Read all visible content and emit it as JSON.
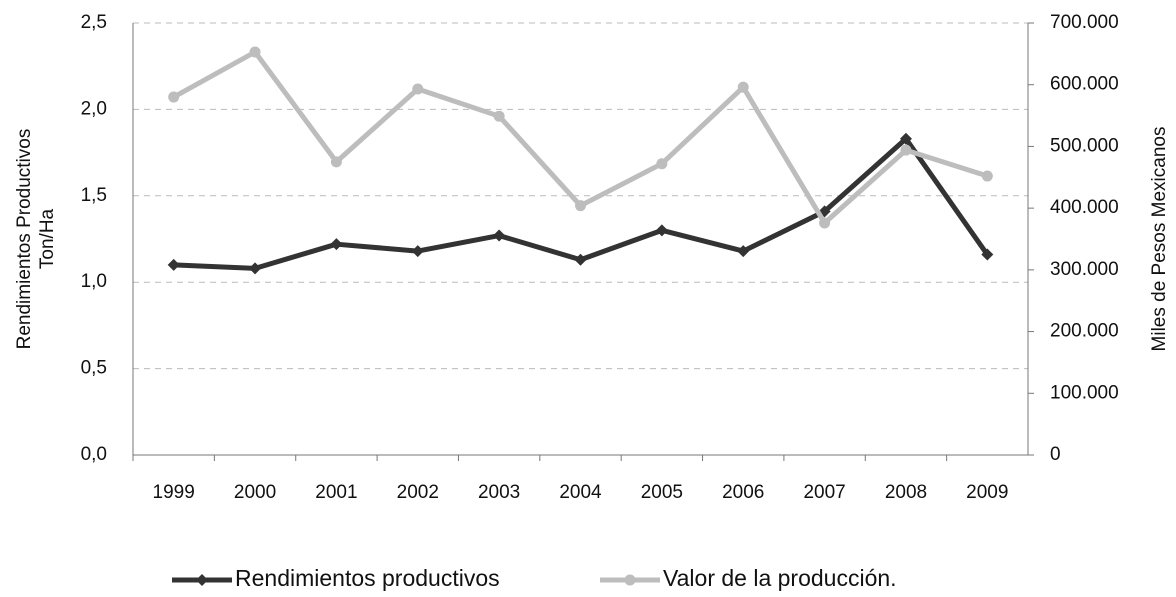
{
  "chart_data": {
    "type": "line",
    "ylabel": [
      "Rendimientos Productivos",
      "Ton/Ha"
    ],
    "y2label": "Miles de Pesos Mexicanos",
    "categories": [
      "1999",
      "2000",
      "2001",
      "2002",
      "2003",
      "2004",
      "2005",
      "2006",
      "2007",
      "2008",
      "2009"
    ],
    "series": [
      {
        "name": "Rendimientos productivos",
        "color": "#333333",
        "marker": "diamond",
        "values": [
          1.1,
          1.08,
          1.22,
          1.18,
          1.27,
          1.13,
          1.3,
          1.18,
          1.41,
          1.83,
          1.16
        ]
      },
      {
        "name": "Valor de la producción.",
        "color": "#bdbdbd",
        "marker": "circle",
        "axis": "y2",
        "values": [
          580000,
          653000,
          475000,
          593000,
          549000,
          404000,
          472000,
          596000,
          376000,
          494000,
          452000
        ]
      }
    ],
    "ylim": [
      0,
      2.5
    ],
    "yticks": [
      {
        "value": 0,
        "label": "0,0"
      },
      {
        "value": 0.5,
        "label": "0,5"
      },
      {
        "value": 1,
        "label": "1,0"
      },
      {
        "value": 1.5,
        "label": "1,5"
      },
      {
        "value": 2,
        "label": "2,0"
      },
      {
        "value": 2.5,
        "label": "2,5"
      }
    ],
    "y2lim": [
      0,
      700000
    ],
    "y2ticks": [
      0,
      {
        "value": 100000,
        "label": "100.000"
      },
      {
        "value": 200000,
        "label": "200.000"
      },
      {
        "value": 300000,
        "label": "300.000"
      },
      {
        "value": 400000,
        "label": "400.000"
      },
      {
        "value": 500000,
        "label": "500.000"
      },
      {
        "value": 600000,
        "label": "600.000"
      },
      {
        "value": 700000,
        "label": "700.000"
      }
    ],
    "grid": true,
    "legend": "bottom"
  }
}
